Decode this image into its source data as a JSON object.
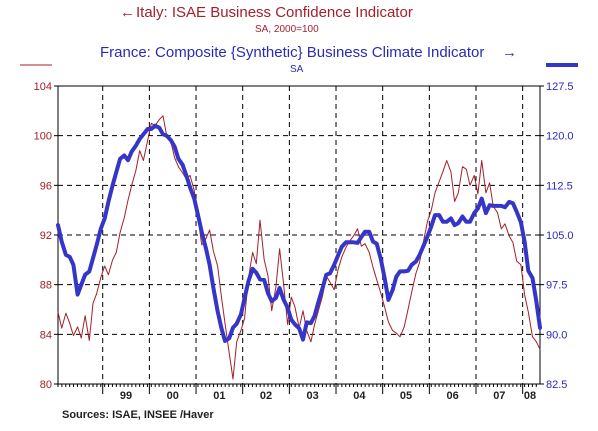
{
  "chart_data": {
    "type": "line",
    "title_left": "Italy: ISAE Business Confidence Indicator",
    "subtitle_left": "SA, 2000=100",
    "title_right": "France: Composite {Synthetic} Business Climate Indicator",
    "subtitle_right": "SA",
    "arrow_left": "←",
    "arrow_right": "→",
    "source": "Sources:  ISAE, INSEE /Haver",
    "x_ticks": [
      "99",
      "00",
      "01",
      "02",
      "03",
      "04",
      "05",
      "06",
      "07",
      "08"
    ],
    "x_range": [
      1998.0,
      2008.33
    ],
    "left_axis": {
      "ylim": [
        80,
        104
      ],
      "ticks": [
        "80",
        "84",
        "88",
        "92",
        "96",
        "100",
        "104"
      ]
    },
    "right_axis": {
      "ylim": [
        82.5,
        127.5
      ],
      "ticks": [
        "82.5",
        "90.0",
        "97.5",
        "105.0",
        "112.5",
        "120.0",
        "127.5"
      ]
    },
    "grid": true,
    "colors": {
      "italy": "#a3202a",
      "france": "#3535c8",
      "grid": "#000000"
    },
    "series": [
      {
        "name": "Italy: ISAE Business Confidence Indicator",
        "axis": "left",
        "points": [
          [
            1998.0,
            85.8
          ],
          [
            1998.08,
            84.5
          ],
          [
            1998.17,
            85.7
          ],
          [
            1998.25,
            84.9
          ],
          [
            1998.33,
            83.9
          ],
          [
            1998.42,
            84.6
          ],
          [
            1998.5,
            83.7
          ],
          [
            1998.58,
            85.5
          ],
          [
            1998.67,
            83.5
          ],
          [
            1998.75,
            86.5
          ],
          [
            1998.83,
            87.3
          ],
          [
            1998.92,
            88.6
          ],
          [
            1999.0,
            89.5
          ],
          [
            1999.08,
            88.8
          ],
          [
            1999.17,
            90.0
          ],
          [
            1999.25,
            90.6
          ],
          [
            1999.33,
            92.2
          ],
          [
            1999.42,
            93.4
          ],
          [
            1999.5,
            94.8
          ],
          [
            1999.58,
            96.0
          ],
          [
            1999.67,
            97.2
          ],
          [
            1999.75,
            98.8
          ],
          [
            1999.83,
            98.0
          ],
          [
            1999.92,
            99.6
          ],
          [
            2000.0,
            101.0
          ],
          [
            2000.08,
            100.8
          ],
          [
            2000.17,
            101.3
          ],
          [
            2000.25,
            101.6
          ],
          [
            2000.33,
            100.0
          ],
          [
            2000.42,
            99.5
          ],
          [
            2000.5,
            98.2
          ],
          [
            2000.58,
            97.5
          ],
          [
            2000.67,
            97.0
          ],
          [
            2000.75,
            96.5
          ],
          [
            2000.83,
            96.8
          ],
          [
            2000.92,
            95.6
          ],
          [
            2001.0,
            93.4
          ],
          [
            2001.08,
            91.2
          ],
          [
            2001.17,
            91.7
          ],
          [
            2001.25,
            92.4
          ],
          [
            2001.33,
            90.7
          ],
          [
            2001.42,
            89.5
          ],
          [
            2001.5,
            87.1
          ],
          [
            2001.58,
            84.9
          ],
          [
            2001.67,
            82.5
          ],
          [
            2001.75,
            80.4
          ],
          [
            2001.83,
            83.4
          ],
          [
            2001.92,
            84.3
          ],
          [
            2002.0,
            85.3
          ],
          [
            2002.08,
            88.5
          ],
          [
            2002.17,
            90.6
          ],
          [
            2002.25,
            89.7
          ],
          [
            2002.33,
            93.2
          ],
          [
            2002.42,
            90.0
          ],
          [
            2002.5,
            88.7
          ],
          [
            2002.58,
            85.9
          ],
          [
            2002.67,
            87.8
          ],
          [
            2002.75,
            90.9
          ],
          [
            2002.83,
            88.2
          ],
          [
            2002.92,
            84.8
          ],
          [
            2003.0,
            87.0
          ],
          [
            2003.08,
            86.2
          ],
          [
            2003.17,
            84.5
          ],
          [
            2003.25,
            85.9
          ],
          [
            2003.33,
            84.3
          ],
          [
            2003.42,
            83.4
          ],
          [
            2003.5,
            84.8
          ],
          [
            2003.58,
            85.9
          ],
          [
            2003.67,
            87.1
          ],
          [
            2003.75,
            88.7
          ],
          [
            2003.83,
            88.2
          ],
          [
            2003.92,
            87.6
          ],
          [
            2004.0,
            89.2
          ],
          [
            2004.08,
            90.2
          ],
          [
            2004.17,
            91.0
          ],
          [
            2004.25,
            91.5
          ],
          [
            2004.33,
            91.9
          ],
          [
            2004.42,
            92.5
          ],
          [
            2004.5,
            91.1
          ],
          [
            2004.58,
            91.3
          ],
          [
            2004.67,
            90.6
          ],
          [
            2004.75,
            89.4
          ],
          [
            2004.83,
            88.4
          ],
          [
            2004.92,
            87.3
          ],
          [
            2005.0,
            86.2
          ],
          [
            2005.08,
            85.0
          ],
          [
            2005.17,
            84.3
          ],
          [
            2005.25,
            84.1
          ],
          [
            2005.33,
            83.8
          ],
          [
            2005.42,
            84.6
          ],
          [
            2005.5,
            86.0
          ],
          [
            2005.58,
            87.4
          ],
          [
            2005.67,
            88.9
          ],
          [
            2005.75,
            89.8
          ],
          [
            2005.83,
            91.4
          ],
          [
            2005.92,
            93.1
          ],
          [
            2006.0,
            94.0
          ],
          [
            2006.08,
            95.4
          ],
          [
            2006.17,
            96.3
          ],
          [
            2006.25,
            97.1
          ],
          [
            2006.33,
            98.0
          ],
          [
            2006.42,
            97.1
          ],
          [
            2006.5,
            94.7
          ],
          [
            2006.58,
            95.4
          ],
          [
            2006.67,
            97.5
          ],
          [
            2006.75,
            97.3
          ],
          [
            2006.83,
            96.0
          ],
          [
            2006.92,
            96.8
          ],
          [
            2007.0,
            95.3
          ],
          [
            2007.08,
            98.0
          ],
          [
            2007.17,
            95.4
          ],
          [
            2007.25,
            96.2
          ],
          [
            2007.33,
            94.3
          ],
          [
            2007.42,
            93.8
          ],
          [
            2007.5,
            92.5
          ],
          [
            2007.58,
            92.9
          ],
          [
            2007.67,
            91.9
          ],
          [
            2007.75,
            91.4
          ],
          [
            2007.83,
            89.9
          ],
          [
            2007.92,
            89.6
          ],
          [
            2008.0,
            87.2
          ],
          [
            2008.08,
            85.8
          ],
          [
            2008.17,
            83.8
          ],
          [
            2008.25,
            83.4
          ],
          [
            2008.33,
            82.8
          ]
        ]
      },
      {
        "name": "France: Composite {Synthetic} Business Climate Indicator",
        "axis": "right",
        "points": [
          [
            1998.0,
            106.5
          ],
          [
            1998.08,
            104.0
          ],
          [
            1998.17,
            102.0
          ],
          [
            1998.25,
            101.7
          ],
          [
            1998.33,
            100.5
          ],
          [
            1998.42,
            96.0
          ],
          [
            1998.5,
            97.5
          ],
          [
            1998.58,
            99.0
          ],
          [
            1998.67,
            99.5
          ],
          [
            1998.75,
            101.5
          ],
          [
            1998.83,
            103.5
          ],
          [
            1998.92,
            106.0
          ],
          [
            1999.0,
            107.5
          ],
          [
            1999.08,
            110.0
          ],
          [
            1999.17,
            112.5
          ],
          [
            1999.25,
            114.5
          ],
          [
            1999.33,
            116.5
          ],
          [
            1999.42,
            117.0
          ],
          [
            1999.5,
            116.3
          ],
          [
            1999.58,
            117.6
          ],
          [
            1999.67,
            118.5
          ],
          [
            1999.75,
            119.5
          ],
          [
            1999.83,
            120.2
          ],
          [
            1999.92,
            121.0
          ],
          [
            2000.0,
            121.0
          ],
          [
            2000.08,
            121.5
          ],
          [
            2000.17,
            121.2
          ],
          [
            2000.25,
            120.2
          ],
          [
            2000.33,
            120.0
          ],
          [
            2000.42,
            119.3
          ],
          [
            2000.5,
            118.3
          ],
          [
            2000.58,
            116.5
          ],
          [
            2000.67,
            115.6
          ],
          [
            2000.75,
            114.0
          ],
          [
            2000.83,
            112.2
          ],
          [
            2000.92,
            110.5
          ],
          [
            2001.0,
            108.0
          ],
          [
            2001.08,
            105.5
          ],
          [
            2001.17,
            103.0
          ],
          [
            2001.25,
            100.5
          ],
          [
            2001.33,
            97.0
          ],
          [
            2001.42,
            93.5
          ],
          [
            2001.5,
            91.0
          ],
          [
            2001.58,
            89.0
          ],
          [
            2001.67,
            89.4
          ],
          [
            2001.75,
            91.0
          ],
          [
            2001.83,
            91.6
          ],
          [
            2001.92,
            93.0
          ],
          [
            2002.0,
            95.5
          ],
          [
            2002.08,
            98.0
          ],
          [
            2002.17,
            99.9
          ],
          [
            2002.25,
            99.3
          ],
          [
            2002.33,
            98.3
          ],
          [
            2002.42,
            98.2
          ],
          [
            2002.5,
            96.2
          ],
          [
            2002.58,
            95.0
          ],
          [
            2002.67,
            95.5
          ],
          [
            2002.75,
            97.0
          ],
          [
            2002.83,
            95.3
          ],
          [
            2002.92,
            94.0
          ],
          [
            2003.0,
            92.2
          ],
          [
            2003.08,
            91.5
          ],
          [
            2003.17,
            90.9
          ],
          [
            2003.25,
            89.2
          ],
          [
            2003.33,
            91.8
          ],
          [
            2003.42,
            91.7
          ],
          [
            2003.5,
            92.8
          ],
          [
            2003.58,
            94.9
          ],
          [
            2003.67,
            97.0
          ],
          [
            2003.75,
            99.0
          ],
          [
            2003.83,
            99.2
          ],
          [
            2003.92,
            100.5
          ],
          [
            2004.0,
            101.9
          ],
          [
            2004.08,
            103.2
          ],
          [
            2004.17,
            103.9
          ],
          [
            2004.25,
            103.9
          ],
          [
            2004.33,
            103.9
          ],
          [
            2004.42,
            103.8
          ],
          [
            2004.5,
            104.7
          ],
          [
            2004.58,
            105.5
          ],
          [
            2004.67,
            105.5
          ],
          [
            2004.75,
            104.0
          ],
          [
            2004.83,
            103.7
          ],
          [
            2004.92,
            101.3
          ],
          [
            2005.0,
            98.5
          ],
          [
            2005.08,
            95.2
          ],
          [
            2005.17,
            96.7
          ],
          [
            2005.25,
            98.7
          ],
          [
            2005.33,
            99.5
          ],
          [
            2005.42,
            99.5
          ],
          [
            2005.5,
            99.6
          ],
          [
            2005.58,
            100.5
          ],
          [
            2005.67,
            101.0
          ],
          [
            2005.75,
            102.0
          ],
          [
            2005.83,
            103.3
          ],
          [
            2005.92,
            104.8
          ],
          [
            2006.0,
            106.3
          ],
          [
            2006.08,
            108.0
          ],
          [
            2006.17,
            108.0
          ],
          [
            2006.25,
            107.0
          ],
          [
            2006.33,
            107.0
          ],
          [
            2006.42,
            107.5
          ],
          [
            2006.5,
            106.5
          ],
          [
            2006.58,
            106.8
          ],
          [
            2006.67,
            107.8
          ],
          [
            2006.75,
            107.0
          ],
          [
            2006.83,
            107.0
          ],
          [
            2006.92,
            108.3
          ],
          [
            2007.0,
            109.0
          ],
          [
            2007.08,
            110.5
          ],
          [
            2007.17,
            108.3
          ],
          [
            2007.25,
            109.5
          ],
          [
            2007.33,
            109.4
          ],
          [
            2007.42,
            109.4
          ],
          [
            2007.5,
            109.4
          ],
          [
            2007.58,
            109.2
          ],
          [
            2007.67,
            110.0
          ],
          [
            2007.75,
            109.8
          ],
          [
            2007.83,
            108.5
          ],
          [
            2007.92,
            106.9
          ],
          [
            2008.0,
            104.0
          ],
          [
            2008.08,
            99.6
          ],
          [
            2008.17,
            98.5
          ],
          [
            2008.25,
            95.0
          ],
          [
            2008.33,
            91.0
          ]
        ]
      }
    ]
  }
}
